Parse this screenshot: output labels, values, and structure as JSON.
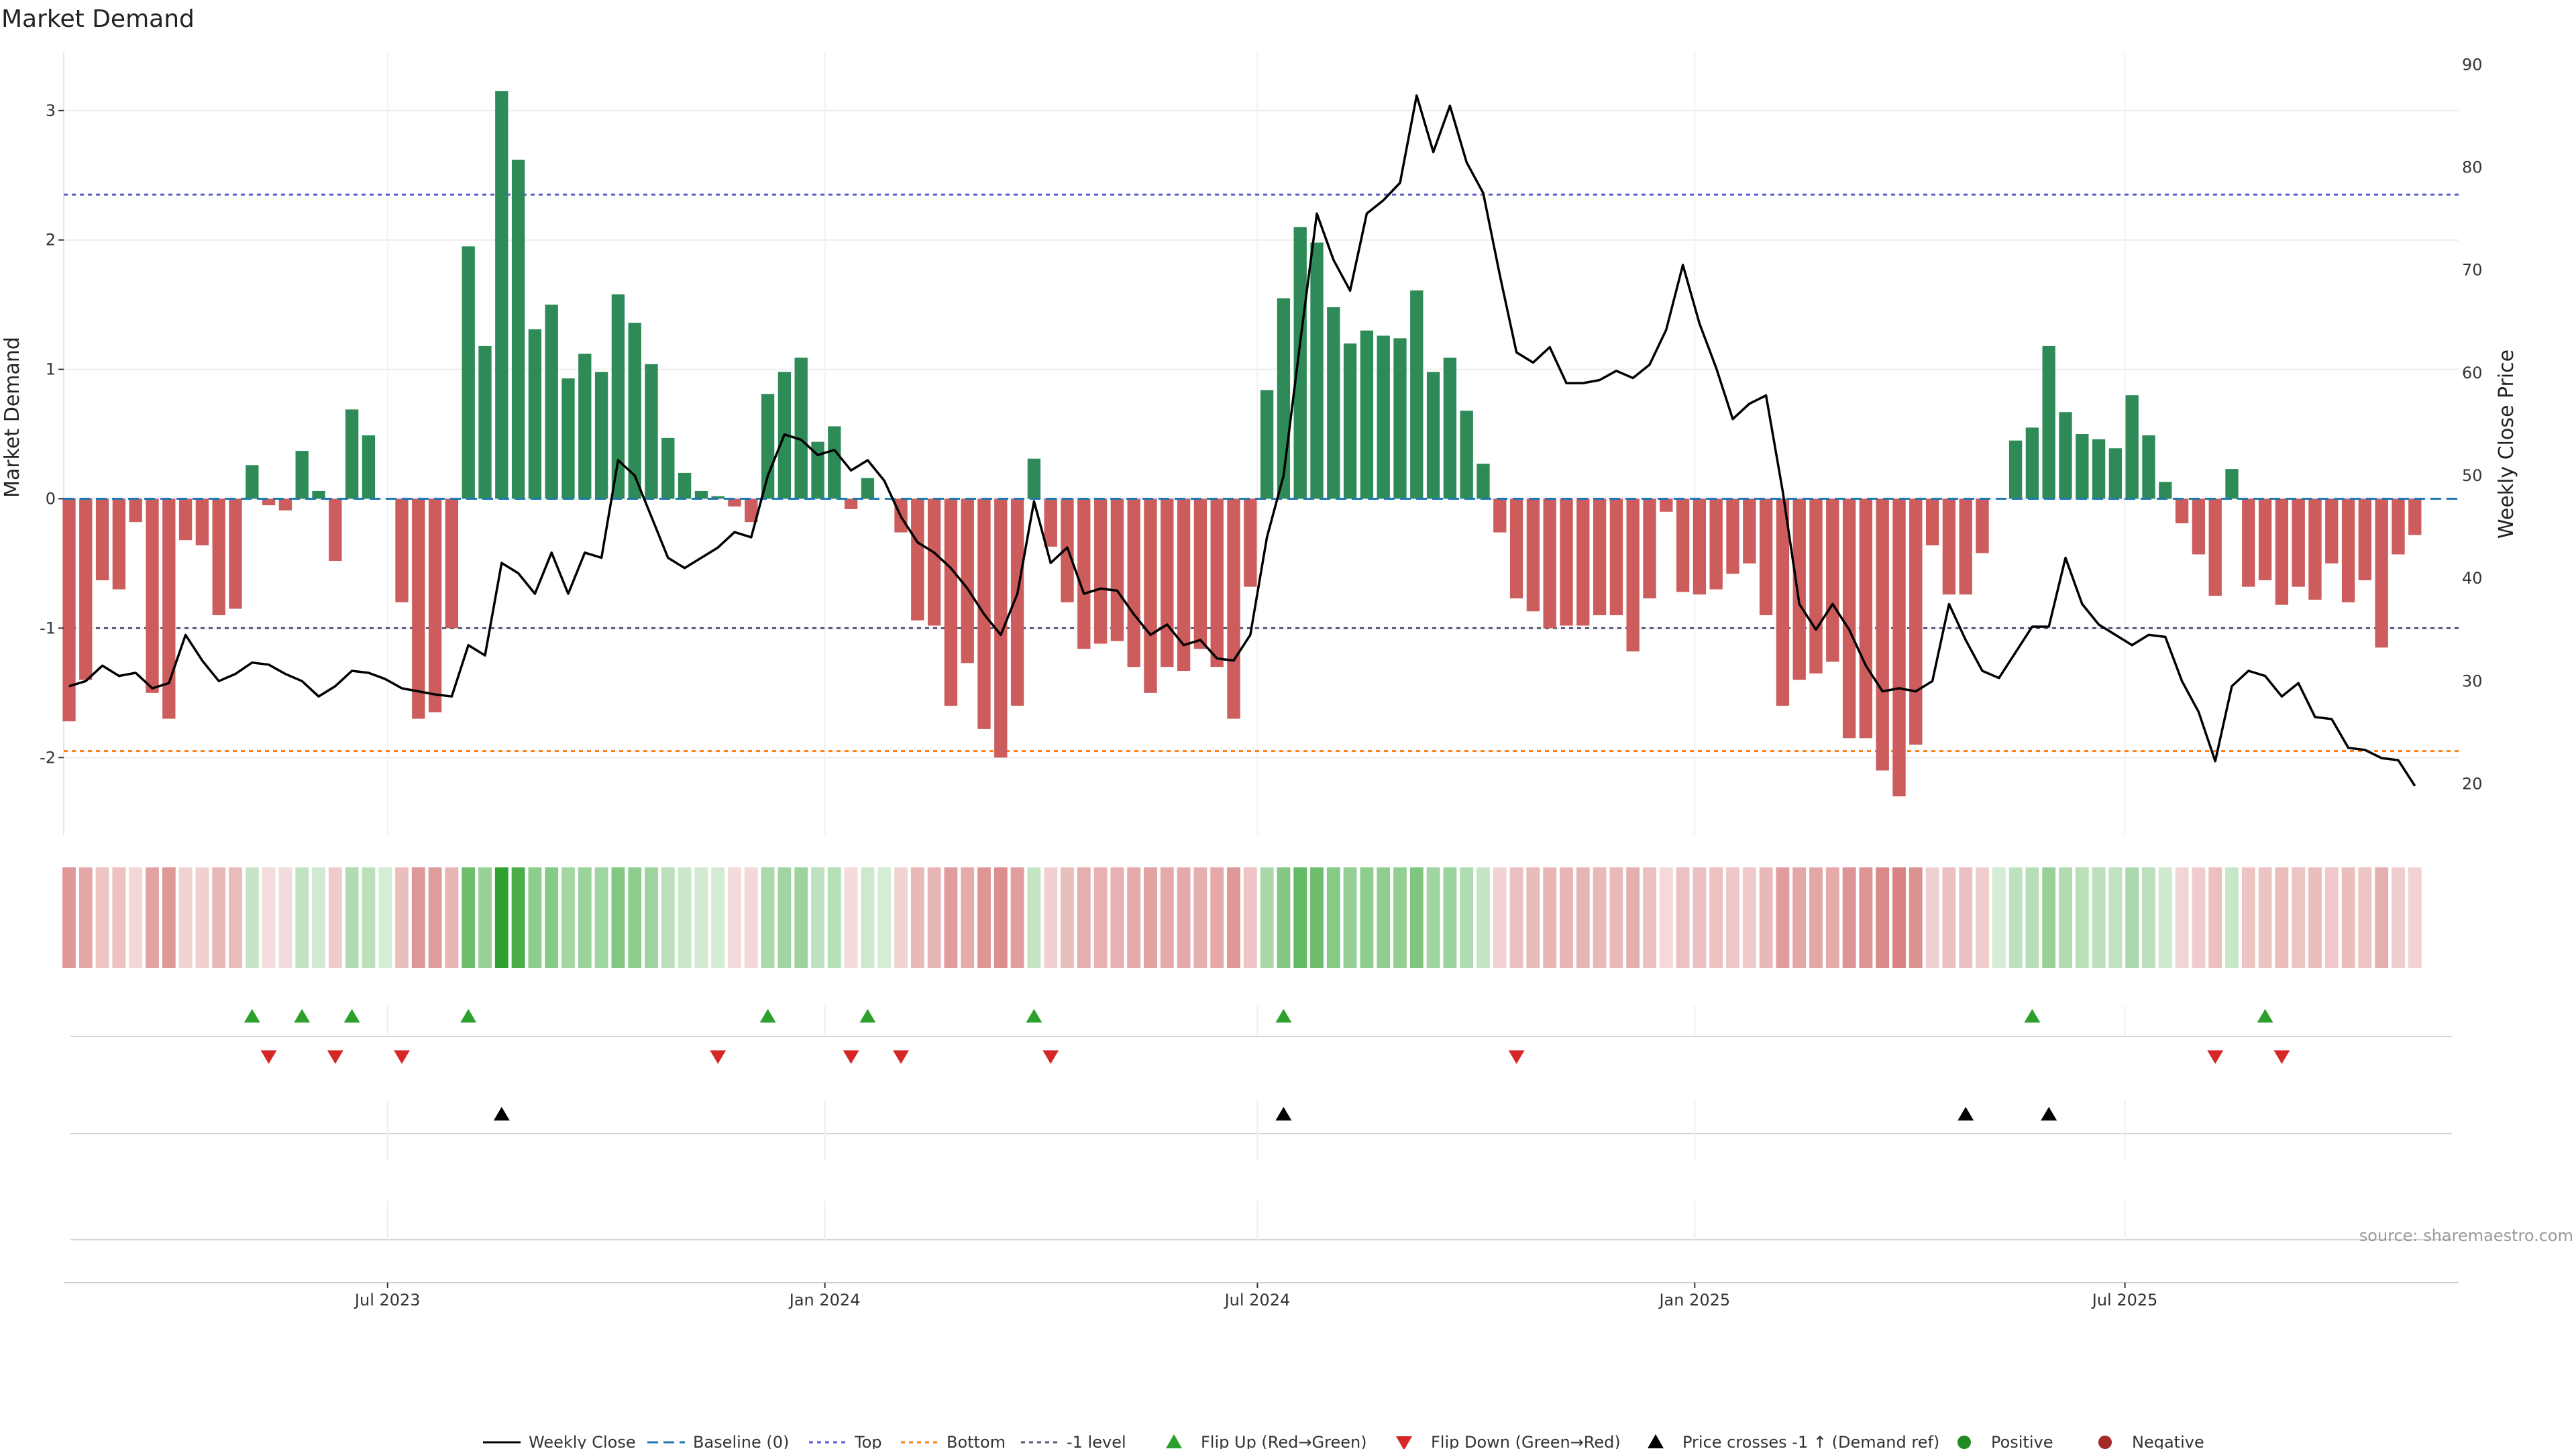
{
  "chart_data": {
    "type": "bar",
    "title": "Market Demand",
    "ylabel": "Market Demand",
    "y2label": "Weekly Close Price",
    "ylim": [
      -2.6,
      3.45
    ],
    "y2lim": [
      15,
      91.2
    ],
    "yticks": [
      3,
      2,
      1,
      0,
      -1,
      -2
    ],
    "y2ticks": [
      90,
      80,
      70,
      60,
      50,
      40,
      30,
      20
    ],
    "x_dates": [
      "2023-02-17",
      "2023-02-24",
      "2023-03-03",
      "2023-03-10",
      "2023-03-17",
      "2023-03-24",
      "2023-03-31",
      "2023-04-07",
      "2023-04-14",
      "2023-04-21",
      "2023-04-28",
      "2023-05-05",
      "2023-05-12",
      "2023-05-19",
      "2023-05-26",
      "2023-06-02",
      "2023-06-09",
      "2023-06-16",
      "2023-06-23",
      "2023-06-30",
      "2023-07-07",
      "2023-07-14",
      "2023-07-21",
      "2023-07-28",
      "2023-08-04",
      "2023-08-11",
      "2023-08-18",
      "2023-08-25",
      "2023-09-01",
      "2023-09-08",
      "2023-09-15",
      "2023-09-22",
      "2023-09-29",
      "2023-10-06",
      "2023-10-13",
      "2023-10-20",
      "2023-10-27",
      "2023-11-03",
      "2023-11-10",
      "2023-11-17",
      "2023-11-24",
      "2023-12-01",
      "2023-12-08",
      "2023-12-15",
      "2023-12-22",
      "2023-12-29",
      "2024-01-05",
      "2024-01-12",
      "2024-01-19",
      "2024-01-26",
      "2024-02-02",
      "2024-02-09",
      "2024-02-16",
      "2024-02-23",
      "2024-03-01",
      "2024-03-08",
      "2024-03-15",
      "2024-03-22",
      "2024-03-29",
      "2024-04-05",
      "2024-04-12",
      "2024-04-19",
      "2024-04-26",
      "2024-05-03",
      "2024-05-10",
      "2024-05-17",
      "2024-05-24",
      "2024-05-31",
      "2024-06-07",
      "2024-06-14",
      "2024-06-21",
      "2024-06-28",
      "2024-07-05",
      "2024-07-12",
      "2024-07-19",
      "2024-07-26",
      "2024-08-02",
      "2024-08-09",
      "2024-08-16",
      "2024-08-23",
      "2024-08-30",
      "2024-09-06",
      "2024-09-13",
      "2024-09-20",
      "2024-09-27",
      "2024-10-04",
      "2024-10-11",
      "2024-10-18",
      "2024-10-25",
      "2024-11-01",
      "2024-11-08",
      "2024-11-15",
      "2024-11-22",
      "2024-11-29",
      "2024-12-06",
      "2024-12-13",
      "2024-12-20",
      "2024-12-27",
      "2025-01-03",
      "2025-01-10",
      "2025-01-17",
      "2025-01-24",
      "2025-01-31",
      "2025-02-07",
      "2025-02-14",
      "2025-02-21",
      "2025-02-28",
      "2025-03-07",
      "2025-03-14",
      "2025-03-21",
      "2025-03-28",
      "2025-04-04",
      "2025-04-11",
      "2025-04-18",
      "2025-04-25",
      "2025-05-02",
      "2025-05-09",
      "2025-05-16",
      "2025-05-23",
      "2025-05-30",
      "2025-06-06",
      "2025-06-13",
      "2025-06-20",
      "2025-06-27",
      "2025-07-04",
      "2025-07-11",
      "2025-07-18",
      "2025-07-25",
      "2025-08-01",
      "2025-08-08",
      "2025-08-15",
      "2025-08-22",
      "2025-08-29",
      "2025-09-05",
      "2025-09-12",
      "2025-09-19",
      "2025-09-26",
      "2025-10-03",
      "2025-10-10",
      "2025-10-17",
      "2025-10-24",
      "2025-10-31",
      "2025-11-07",
      "2025-11-14"
    ],
    "x_tick_labels": [
      "Jul 2023",
      "Jan 2024",
      "Jul 2024",
      "Jan 2025",
      "Jul 2025"
    ],
    "x_tick_dates": [
      "2023-07-01",
      "2024-01-01",
      "2024-07-01",
      "2025-01-01",
      "2025-07-01"
    ],
    "series": [
      {
        "name": "Market Demand",
        "type": "bar",
        "values": [
          -1.72,
          -1.4,
          -0.63,
          -0.7,
          -0.18,
          -1.5,
          -1.7,
          -0.32,
          -0.36,
          -0.9,
          -0.85,
          0.26,
          -0.05,
          -0.09,
          0.37,
          0.06,
          -0.48,
          0.69,
          0.49,
          0,
          -0.8,
          -1.7,
          -1.65,
          -1.0,
          1.95,
          1.18,
          3.15,
          2.62,
          1.31,
          1.5,
          0.93,
          1.12,
          0.98,
          1.58,
          1.36,
          1.04,
          0.47,
          0.2,
          0.06,
          0.02,
          -0.06,
          -0.18,
          0.81,
          0.98,
          1.09,
          0.44,
          0.56,
          -0.08,
          0.16,
          0,
          -0.26,
          -0.94,
          -0.98,
          -1.6,
          -1.27,
          -1.78,
          -2.0,
          -1.6,
          0.31,
          -0.37,
          -0.8,
          -1.16,
          -1.12,
          -1.1,
          -1.3,
          -1.5,
          -1.3,
          -1.33,
          -1.16,
          -1.3,
          -1.7,
          -0.68,
          0.84,
          1.55,
          2.1,
          1.98,
          1.48,
          1.2,
          1.3,
          1.26,
          1.24,
          1.61,
          0.98,
          1.09,
          0.68,
          0.27,
          -0.26,
          -0.77,
          -0.87,
          -1.0,
          -0.98,
          -0.98,
          -0.9,
          -0.9,
          -1.18,
          -0.77,
          -0.1,
          -0.72,
          -0.74,
          -0.7,
          -0.58,
          -0.5,
          -0.9,
          -1.6,
          -1.4,
          -1.35,
          -1.26,
          -1.85,
          -1.85,
          -2.1,
          -2.3,
          -1.9,
          -0.36,
          -0.74,
          -0.74,
          -0.42,
          0,
          0.45,
          0.55,
          1.18,
          0.67,
          0.5,
          0.46,
          0.39,
          0.8,
          0.49,
          0.13,
          -0.19,
          -0.43,
          -0.75,
          0.23,
          -0.68,
          -0.63,
          -0.82,
          -0.68,
          -0.78,
          -0.5,
          -0.8,
          -0.63,
          -1.15,
          -0.43,
          -0.28
        ]
      },
      {
        "name": "Weekly Close",
        "type": "line",
        "values": [
          29.5,
          30,
          31.5,
          30.5,
          30.8,
          29.3,
          29.8,
          34.5,
          32,
          30,
          30.7,
          31.8,
          31.6,
          30.7,
          30,
          28.5,
          29.5,
          31,
          30.8,
          30.2,
          29.3,
          29,
          28.7,
          28.5,
          33.5,
          32.5,
          41.5,
          40.5,
          38.5,
          42.5,
          38.5,
          42.5,
          42,
          51.5,
          50,
          46,
          42,
          41,
          42,
          43,
          44.5,
          44,
          50,
          54,
          53.5,
          52,
          52.5,
          50.5,
          51.5,
          49.5,
          46,
          43.5,
          42.5,
          41,
          39,
          36.5,
          34.5,
          38.5,
          47.5,
          41.5,
          43,
          38.5,
          39,
          38.8,
          36.5,
          34.5,
          35.5,
          33.5,
          34,
          32.2,
          32,
          34.5,
          44,
          50,
          63,
          75.5,
          71,
          68,
          75.5,
          76.8,
          78.5,
          87,
          81.5,
          86,
          80.5,
          77.5,
          69.5,
          62,
          61,
          62.5,
          59,
          59,
          59.3,
          60.2,
          59.5,
          60.8,
          64.2,
          70.5,
          64.8,
          60.5,
          55.5,
          57,
          57.8,
          48.5,
          37.5,
          35,
          37.5,
          35,
          31.5,
          29,
          29.3,
          29,
          30,
          37.5,
          34,
          31,
          30.3,
          32.8,
          35.3,
          35.3,
          42,
          37.5,
          35.5,
          34.5,
          33.5,
          34.5,
          34.3,
          30,
          27,
          22.2,
          29.5,
          31,
          30.5,
          28.5,
          29.8,
          26.5,
          26.3,
          23.5,
          23.3,
          22.5,
          22.3,
          19.8
        ]
      }
    ],
    "reference_lines": [
      {
        "name": "Baseline (0)",
        "y": 0
      },
      {
        "name": "Top",
        "y": 2.35
      },
      {
        "name": "Bottom",
        "y": -1.95
      },
      {
        "name": "-1 level",
        "y": -1
      }
    ],
    "flip_up_indices": [
      11,
      14,
      17,
      24,
      42,
      48,
      58,
      73,
      118,
      132
    ],
    "flip_down_indices": [
      12,
      16,
      20,
      39,
      47,
      50,
      59,
      87,
      129,
      133
    ],
    "price_cross_indices": [
      26,
      73,
      114,
      119
    ],
    "legend": {
      "placement": "bottom-center",
      "items": [
        "Weekly Close",
        "Baseline (0)",
        "Top",
        "Bottom",
        "-1 level",
        "Flip Up (Red→Green)",
        "Flip Down (Green→Red)",
        "Price crosses -1 ↑ (Demand ref)",
        "Positive",
        "Negative"
      ]
    },
    "colors": {
      "positive": "#2e8b57",
      "negative": "#cd5c5c",
      "line": "#000000",
      "baseline": "#1f77b4",
      "top": "#5b5bd6",
      "bottom": "#ff7f0e",
      "minus1": "#555577",
      "flip_up": "#2ca02c",
      "flip_down": "#d62728",
      "pos_dot": "#228b22",
      "neg_dot": "#a52a2a"
    },
    "source": "source: sharemaestro.com"
  }
}
